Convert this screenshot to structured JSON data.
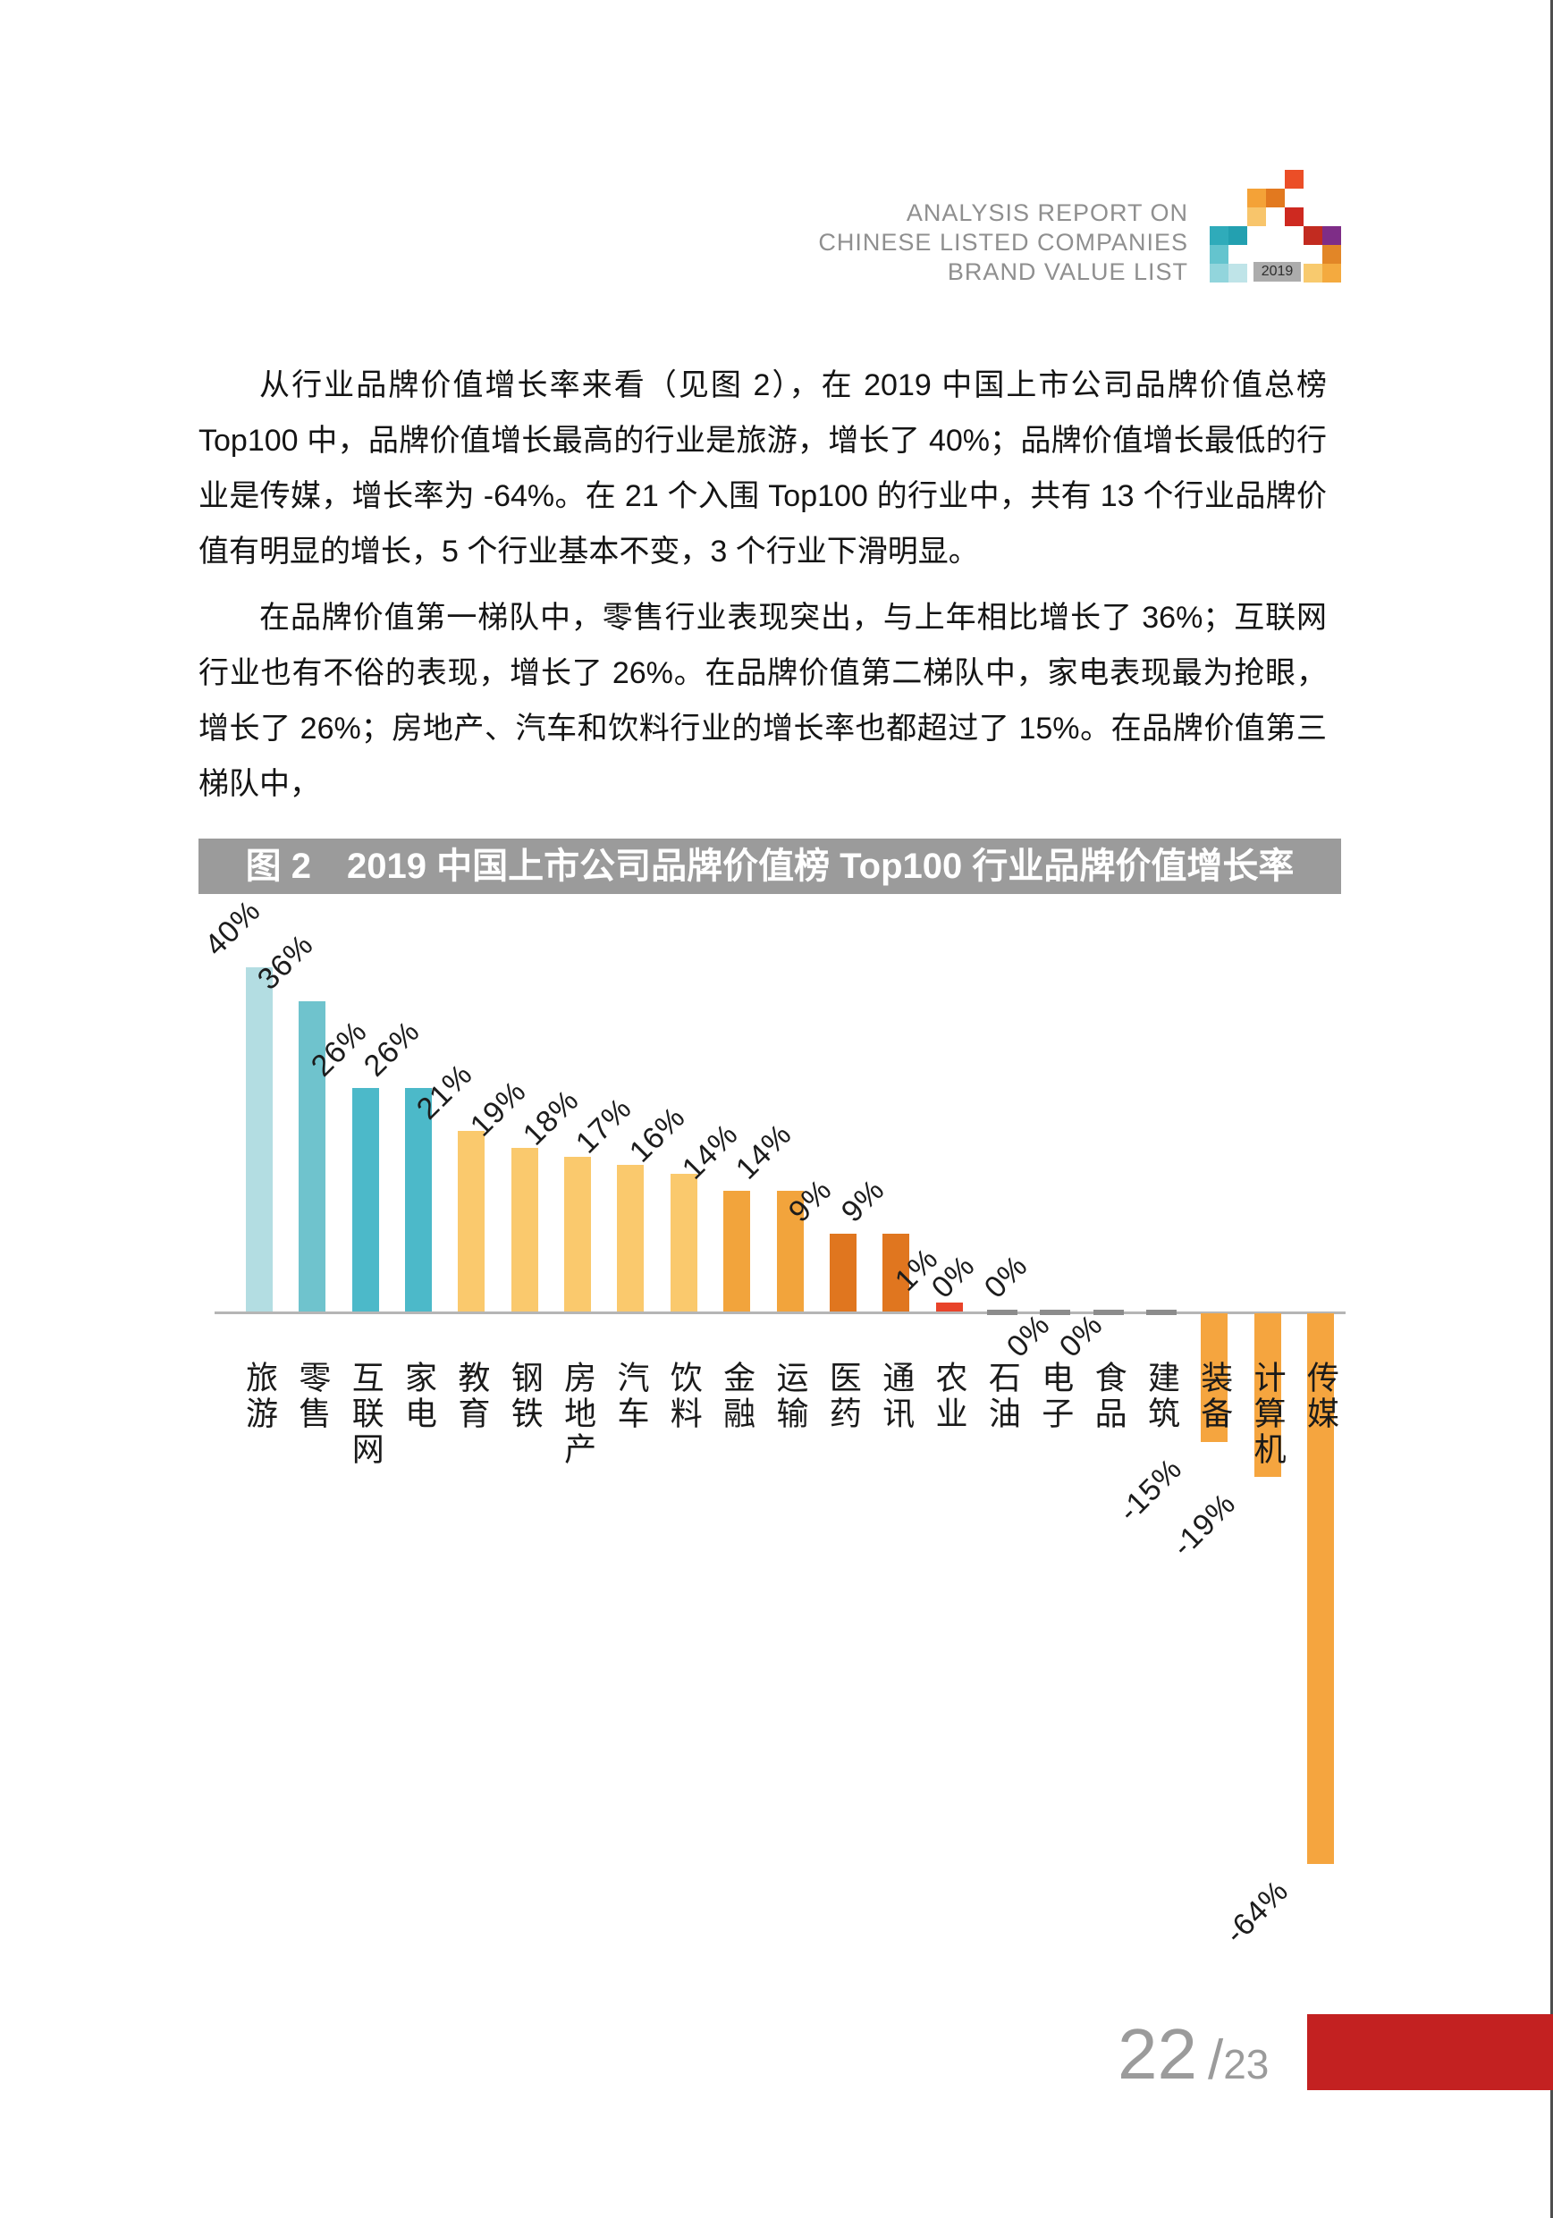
{
  "header": {
    "title_lines": [
      "ANALYSIS REPORT ON",
      "CHINESE LISTED COMPANIES",
      "BRAND VALUE LIST"
    ],
    "logo": {
      "year": "2019",
      "square_size": 21,
      "squares": [
        {
          "col": 4,
          "row": 0,
          "color": "#EB4E27"
        },
        {
          "col": 2,
          "row": 1,
          "color": "#F4A237"
        },
        {
          "col": 3,
          "row": 1,
          "color": "#E2791F"
        },
        {
          "col": 2,
          "row": 2,
          "color": "#F8C56B"
        },
        {
          "col": 4,
          "row": 2,
          "color": "#CE2920"
        },
        {
          "col": 0,
          "row": 3,
          "color": "#2FABBA"
        },
        {
          "col": 1,
          "row": 3,
          "color": "#23A0B0"
        },
        {
          "col": 5,
          "row": 3,
          "color": "#C22B20"
        },
        {
          "col": 6,
          "row": 3,
          "color": "#7E2D87"
        },
        {
          "col": 0,
          "row": 4,
          "color": "#64C4CE"
        },
        {
          "col": 6,
          "row": 4,
          "color": "#E28627"
        },
        {
          "col": 0,
          "row": 5,
          "color": "#92D5DC"
        },
        {
          "col": 1,
          "row": 5,
          "color": "#BFE4E8"
        },
        {
          "col": 5,
          "row": 5,
          "color": "#F8CA6E"
        },
        {
          "col": 6,
          "row": 5,
          "color": "#F4AA3F"
        }
      ]
    }
  },
  "body": {
    "paragraph1": "从行业品牌价值增长率来看（见图 2），在 2019 中国上市公司品牌价值总榜 Top100 中，品牌价值增长最高的行业是旅游，增长了 40%；品牌价值增长最低的行业是传媒，增长率为 -64%。在 21 个入围 Top100 的行业中，共有 13 个行业品牌价值有明显的增长，5 个行业基本不变，3 个行业下滑明显。",
    "paragraph2": "在品牌价值第一梯队中，零售行业表现突出，与上年相比增长了 36%；互联网行业也有不俗的表现，增长了 26%。在品牌价值第二梯队中，家电表现最为抢眼，增长了 26%；房地产、汽车和饮料行业的增长率也都超过了 15%。在品牌价值第三梯队中，"
  },
  "chart_data": {
    "type": "bar",
    "title": "图 2　2019 中国上市公司品牌价值榜 Top100 行业品牌价值增长率",
    "categories": [
      "旅游",
      "零售",
      "互联网",
      "家电",
      "教育",
      "钢铁",
      "房地产",
      "汽车",
      "饮料",
      "金融",
      "运输",
      "医药",
      "通讯",
      "农业",
      "石油",
      "电子",
      "食品",
      "建筑",
      "装备",
      "计算机",
      "传媒"
    ],
    "values": [
      40,
      36,
      26,
      26,
      21,
      19,
      18,
      17,
      16,
      14,
      14,
      9,
      9,
      1,
      0,
      0,
      0,
      0,
      -15,
      -19,
      -64
    ],
    "value_labels": [
      "40%",
      "36%",
      "26%",
      "26%",
      "21%",
      "19%",
      "18%",
      "17%",
      "16%",
      "14%",
      "14%",
      "9%",
      "9%",
      "1%",
      "0%",
      "0%",
      "0%",
      "0%",
      "-15%",
      "-19%",
      "-64%"
    ],
    "bar_colors": [
      "#B3DDE2",
      "#6FC3CD",
      "#4CB9C9",
      "#4CB9C9",
      "#FAC96D",
      "#FAC96D",
      "#FAC96D",
      "#FAC96D",
      "#FAC96D",
      "#F2A43C",
      "#F2A43C",
      "#E0761F",
      "#E0761F",
      "#E8432A",
      "#8C8C8C",
      "#8C8C8C",
      "#8C8C8C",
      "#8C8C8C",
      "#F5A53F",
      "#F5A53F",
      "#F5A53F"
    ],
    "label_side": [
      "above",
      "above",
      "above",
      "above",
      "above",
      "above",
      "above",
      "above",
      "above",
      "above",
      "above",
      "above",
      "above",
      "above",
      "above",
      "above",
      "below",
      "below",
      "below",
      "below",
      "below"
    ],
    "xlabel": "",
    "ylabel": "",
    "ylim": [
      -70,
      45
    ],
    "grid": false,
    "legend": false,
    "value_label_rotation_deg": -45,
    "axis_color": "#B5B5B5",
    "zero_marker_color": "#8C8C8C"
  },
  "footer": {
    "page_number": "22",
    "slash": "/",
    "page_total": "23",
    "accent_color": "#C32121"
  }
}
